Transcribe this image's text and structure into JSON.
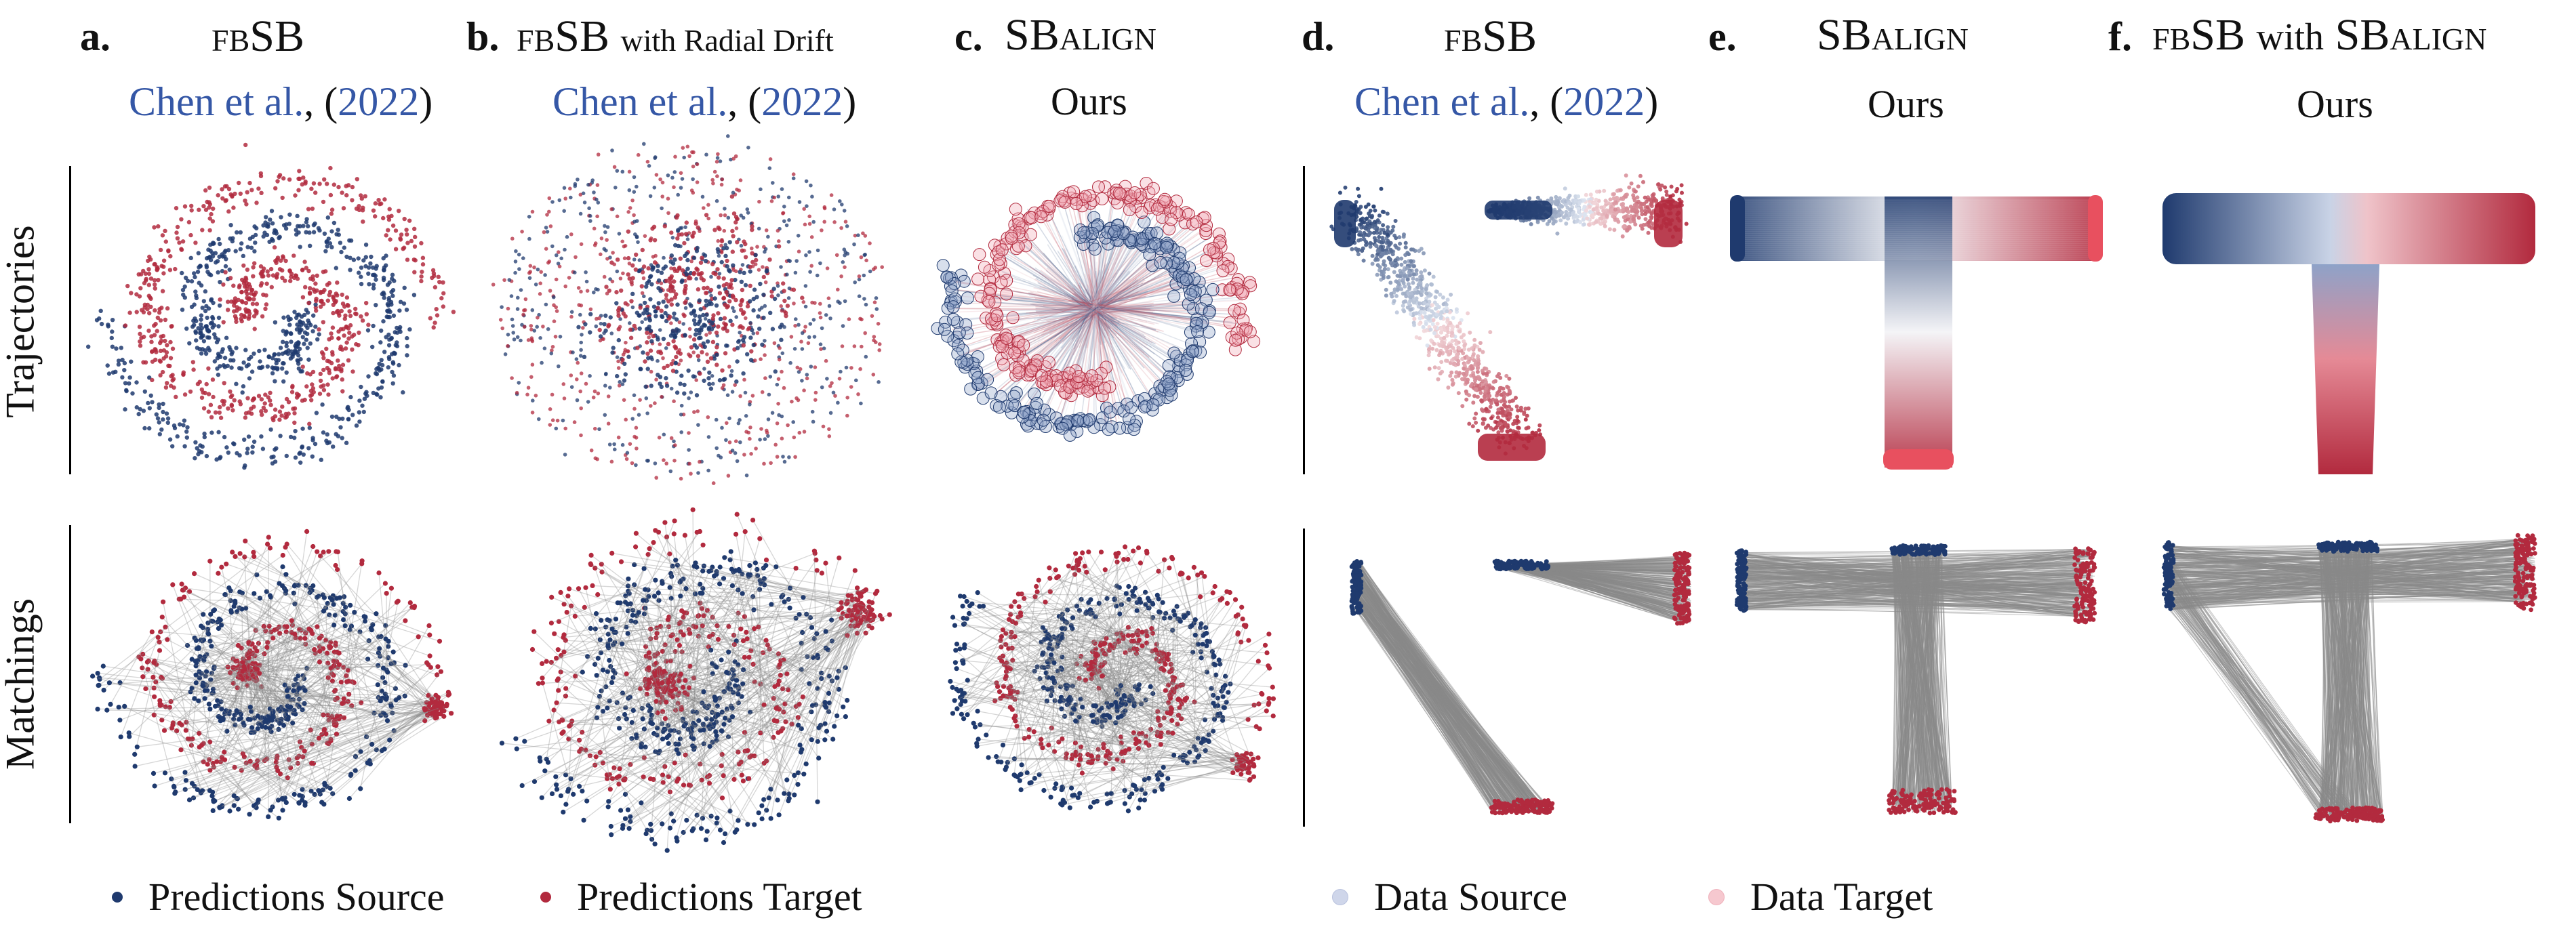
{
  "panels": [
    {
      "label": "a.",
      "title": "fbSB",
      "subtitle_cite_author": "Chen et al.",
      "subtitle_cite_year": "2022"
    },
    {
      "label": "b.",
      "title": "fbSB",
      "title_suffix": "with Radial Drift",
      "subtitle_cite_author": "Chen et al.",
      "subtitle_cite_year": "2022"
    },
    {
      "label": "c.",
      "title": "SBalign",
      "subtitle": "Ours"
    },
    {
      "label": "d.",
      "title": "fbSB",
      "subtitle_cite_author": "Chen et al.",
      "subtitle_cite_year": "2022"
    },
    {
      "label": "e.",
      "title": "SBalign",
      "subtitle": "Ours"
    },
    {
      "label": "f.",
      "title": "fbSB",
      "title_mid": "with",
      "title_end": "SBalign",
      "subtitle": "Ours"
    }
  ],
  "rows": {
    "top": "Trajectories",
    "bottom": "Matchings"
  },
  "legend": {
    "pred_source": "Predictions Source",
    "pred_target": "Predictions Target",
    "data_source": "Data Source",
    "data_target": "Data Target"
  },
  "colors": {
    "source": "#1f3a6e",
    "target": "#b22a3e",
    "data_source": "#cfd6ea",
    "data_target": "#f6c8cf",
    "match_line": "#8a8a8a",
    "cite": "#3557a6"
  }
}
